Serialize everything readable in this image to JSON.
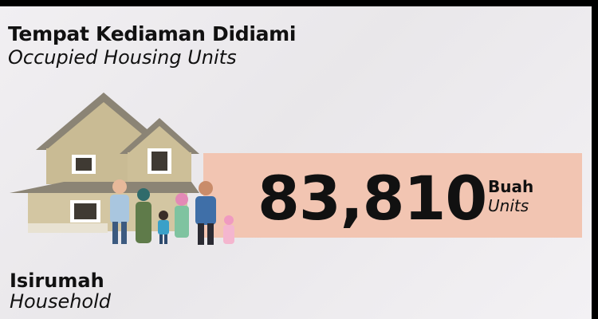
{
  "header": {
    "title": "Tempat Kediaman Didiami",
    "subtitle": "Occupied Housing Units"
  },
  "stat": {
    "value": "83,810",
    "unit": "Buah",
    "unit_en": "Units"
  },
  "section": {
    "title": "Isirumah",
    "subtitle": "Household"
  }
}
